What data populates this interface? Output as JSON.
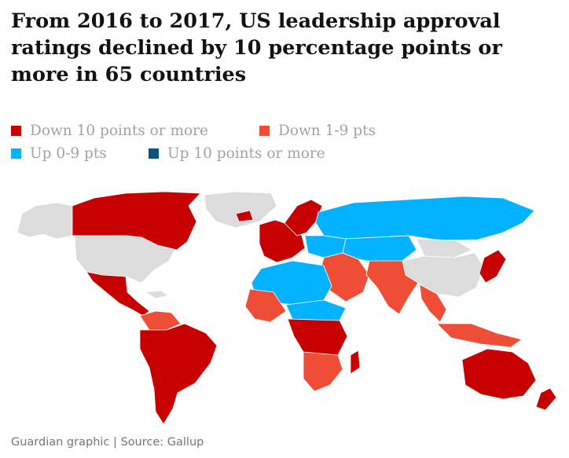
{
  "title": "From 2016 to 2017, US leadership approval ratings declined by 10 percentage points or more in 65 countries",
  "legend": [
    {
      "label": "Down 10 points or more",
      "color": "#c70000"
    },
    {
      "label": "Down 1-9 pts",
      "color": "#ef4d35"
    },
    {
      "label": "Up 0-9 pts",
      "color": "#00b2ff"
    },
    {
      "label": "Up 10 points or more",
      "color": "#005689"
    }
  ],
  "no_data_color": "#dcdcdc",
  "source": "Guardian graphic | Source: Gallup"
}
